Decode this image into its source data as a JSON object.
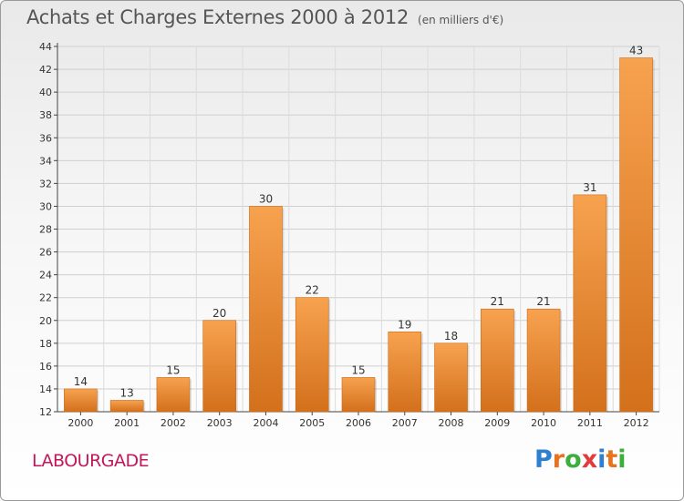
{
  "page": {
    "title": "Achats et Charges Externes 2000 à 2012",
    "unit_note": "(en milliers d'€)",
    "commune": "LABOURGADE",
    "logo_text": "Proxiti",
    "logo_colors": [
      "#2f7fd1",
      "#e8731f",
      "#3cae3c",
      "#e23b3b",
      "#2f7fd1",
      "#e8731f",
      "#3cae3c"
    ]
  },
  "chart_data": {
    "type": "bar",
    "title": "Achats et Charges Externes 2000 à 2012",
    "subtitle": "(en milliers d'€)",
    "categories": [
      "2000",
      "2001",
      "2002",
      "2003",
      "2004",
      "2005",
      "2006",
      "2007",
      "2008",
      "2009",
      "2010",
      "2011",
      "2012"
    ],
    "values": [
      14,
      13,
      15,
      20,
      30,
      22,
      15,
      19,
      18,
      21,
      21,
      31,
      43
    ],
    "data_labels": [
      "14",
      "13",
      "15",
      "20",
      "30",
      "22",
      "15",
      "19",
      "18",
      "21",
      "21",
      "31",
      "43"
    ],
    "ylim": [
      12,
      44
    ],
    "yticks": [
      "12",
      "14",
      "16",
      "18",
      "20",
      "22",
      "24",
      "26",
      "28",
      "30",
      "32",
      "34",
      "36",
      "38",
      "40",
      "42",
      "44"
    ],
    "grid": true,
    "bar_color_top": "#f7a24f",
    "bar_color_bottom": "#d3701c",
    "xlabel": "",
    "ylabel": ""
  }
}
